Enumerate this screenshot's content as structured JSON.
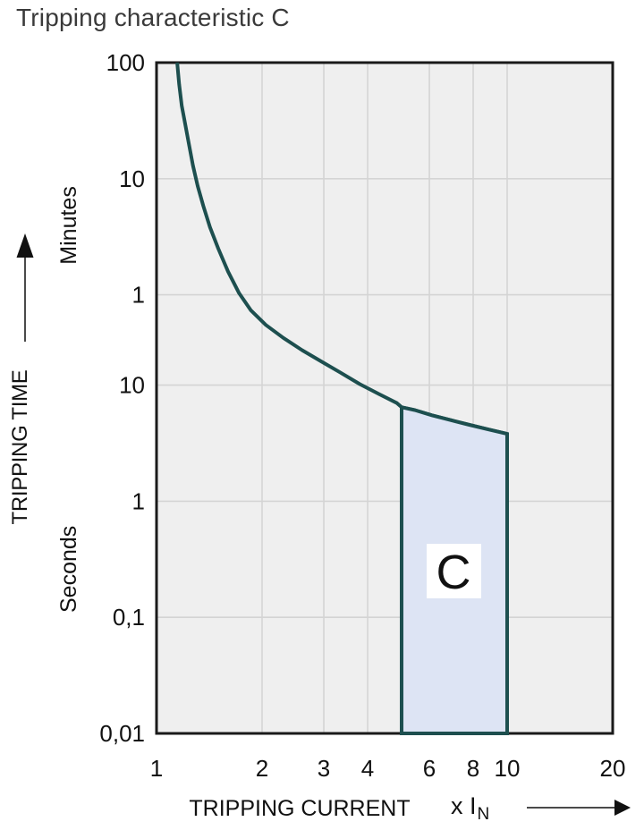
{
  "chart_data": {
    "type": "line",
    "title": "Tripping characteristic C",
    "x_axis": {
      "label": "TRIPPING CURRENT",
      "unit_main": "x I",
      "unit_sub": "N",
      "scale": "log",
      "xlim": [
        1,
        20
      ],
      "ticks": [
        {
          "label": "1",
          "value": 1
        },
        {
          "label": "2",
          "value": 2
        },
        {
          "label": "3",
          "value": 3
        },
        {
          "label": "4",
          "value": 4
        },
        {
          "label": "6",
          "value": 6
        },
        {
          "label": "8",
          "value": 8
        },
        {
          "label": "10",
          "value": 10
        },
        {
          "label": "20",
          "value": 20
        }
      ],
      "gridline_values": [
        2,
        3,
        4,
        6,
        8,
        10
      ]
    },
    "y_axis": {
      "label": "TRIPPING TIME",
      "scale": "log",
      "ylim_seconds": [
        0.01,
        6000
      ],
      "unit_sections": [
        {
          "label": "Minutes",
          "center_seconds": 238
        },
        {
          "label": "Seconds",
          "center_seconds": 0.26
        }
      ],
      "ticks": [
        {
          "label": "100",
          "seconds": 6000
        },
        {
          "label": "10",
          "seconds": 600
        },
        {
          "label": "1",
          "seconds": 60
        },
        {
          "label": "10",
          "seconds": 10
        },
        {
          "label": "1",
          "seconds": 1
        },
        {
          "label": "0,1",
          "seconds": 0.1
        },
        {
          "label": "0,01",
          "seconds": 0.01
        }
      ],
      "gridline_seconds": [
        600,
        60,
        10,
        1,
        0.1
      ]
    },
    "series": [
      {
        "name": "C tripping curve",
        "points": [
          [
            1.145,
            6000
          ],
          [
            1.16,
            3900
          ],
          [
            1.18,
            2550
          ],
          [
            1.21,
            1700
          ],
          [
            1.24,
            1150
          ],
          [
            1.27,
            780
          ],
          [
            1.31,
            520
          ],
          [
            1.36,
            350
          ],
          [
            1.42,
            230
          ],
          [
            1.5,
            150
          ],
          [
            1.6,
            95
          ],
          [
            1.72,
            62
          ],
          [
            1.86,
            44
          ],
          [
            2.05,
            33
          ],
          [
            2.3,
            25.5
          ],
          [
            2.6,
            20
          ],
          [
            2.95,
            16
          ],
          [
            3.35,
            12.8
          ],
          [
            3.8,
            10.2
          ],
          [
            4.3,
            8.4
          ],
          [
            4.85,
            7.0
          ],
          [
            5.0,
            6.45
          ],
          [
            5.45,
            6.1
          ],
          [
            6.1,
            5.5
          ],
          [
            6.9,
            5.0
          ],
          [
            7.8,
            4.55
          ],
          [
            8.85,
            4.15
          ],
          [
            10.0,
            3.8
          ]
        ]
      }
    ],
    "region": {
      "label": "C",
      "x_range": [
        5,
        10
      ],
      "bottom_seconds": 0.01,
      "top_boundary": [
        [
          5.0,
          6.45
        ],
        [
          5.45,
          6.1
        ],
        [
          6.1,
          5.5
        ],
        [
          6.9,
          5.0
        ],
        [
          7.8,
          4.55
        ],
        [
          8.85,
          4.15
        ],
        [
          10.0,
          3.8
        ]
      ]
    },
    "colors": {
      "curve": "#1d4f4f",
      "region_fill": "#dde4f4",
      "plot_bg": "#efefef",
      "gridline": "#d4d4d4",
      "frame": "#1a1a1a",
      "text": "#111111",
      "title_text": "#3a3a3a",
      "arrow_line": "#4a4a4a"
    }
  }
}
